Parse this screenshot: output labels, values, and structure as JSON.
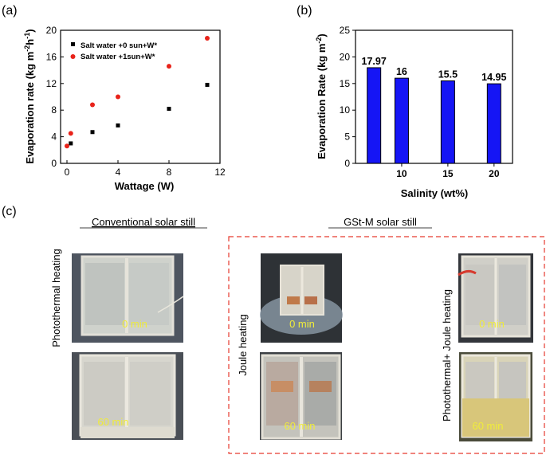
{
  "panel_labels": {
    "a": "(a)",
    "b": "(b)",
    "c": "(c)"
  },
  "chart_data": [
    {
      "type": "scatter",
      "xlabel": "Wattage (W)",
      "ylabel": "Evaporation rate (kg m",
      "ylabel_sup1": "-2",
      "ylabel_mid": "h",
      "ylabel_sup2": "-1",
      "ylabel_end": ")",
      "xlim": [
        -0.5,
        12
      ],
      "ylim": [
        0,
        20
      ],
      "xticks": [
        "0",
        "4",
        "8",
        "12"
      ],
      "xtick_values": [
        0,
        4,
        8,
        12
      ],
      "yticks": [
        "0",
        "4",
        "8",
        "12",
        "16",
        "20"
      ],
      "ytick_values": [
        0,
        4,
        8,
        12,
        16,
        20
      ],
      "legend_position": "top-left",
      "series": [
        {
          "name": "Salt water +0 sun+W*",
          "color": "#000000",
          "marker": "square",
          "x": [
            0.3,
            2,
            4,
            8,
            11
          ],
          "y": [
            3.0,
            4.7,
            5.7,
            8.2,
            11.8
          ]
        },
        {
          "name": "Salt water +1sun+W*",
          "color": "#e8231a",
          "marker": "circle",
          "x": [
            0,
            0.3,
            2,
            4,
            8,
            11
          ],
          "y": [
            2.6,
            4.5,
            8.8,
            10.0,
            14.6,
            18.8
          ]
        }
      ]
    },
    {
      "type": "bar",
      "xlabel": "Salinity (wt%)",
      "ylabel": "Evaporation Rate (kg m",
      "ylabel_sup": "-2",
      "ylabel_end": ")",
      "xlim": [
        5,
        22
      ],
      "ylim": [
        0,
        25
      ],
      "xticks": [
        "10",
        "15",
        "20"
      ],
      "xtick_values": [
        10,
        15,
        20
      ],
      "yticks": [
        "0",
        "5",
        "10",
        "15",
        "20",
        "25"
      ],
      "ytick_values": [
        0,
        5,
        10,
        15,
        20,
        25
      ],
      "x": [
        7,
        10,
        15,
        20
      ],
      "values": [
        17.97,
        16,
        15.5,
        14.95
      ],
      "data_labels": [
        "17.97",
        "16",
        "15.5",
        "14.95"
      ],
      "bar_color": "#1515f5"
    }
  ],
  "photos": {
    "conventional_title": "Conventional solar still",
    "gst_title": "GSt-M solar still",
    "photothermal_label": "Photothermal heating",
    "joule_label": "Joule heating",
    "combined_label": "Photothermal+ Joule heating",
    "time_0": "0 min",
    "time_60": "60 min"
  }
}
